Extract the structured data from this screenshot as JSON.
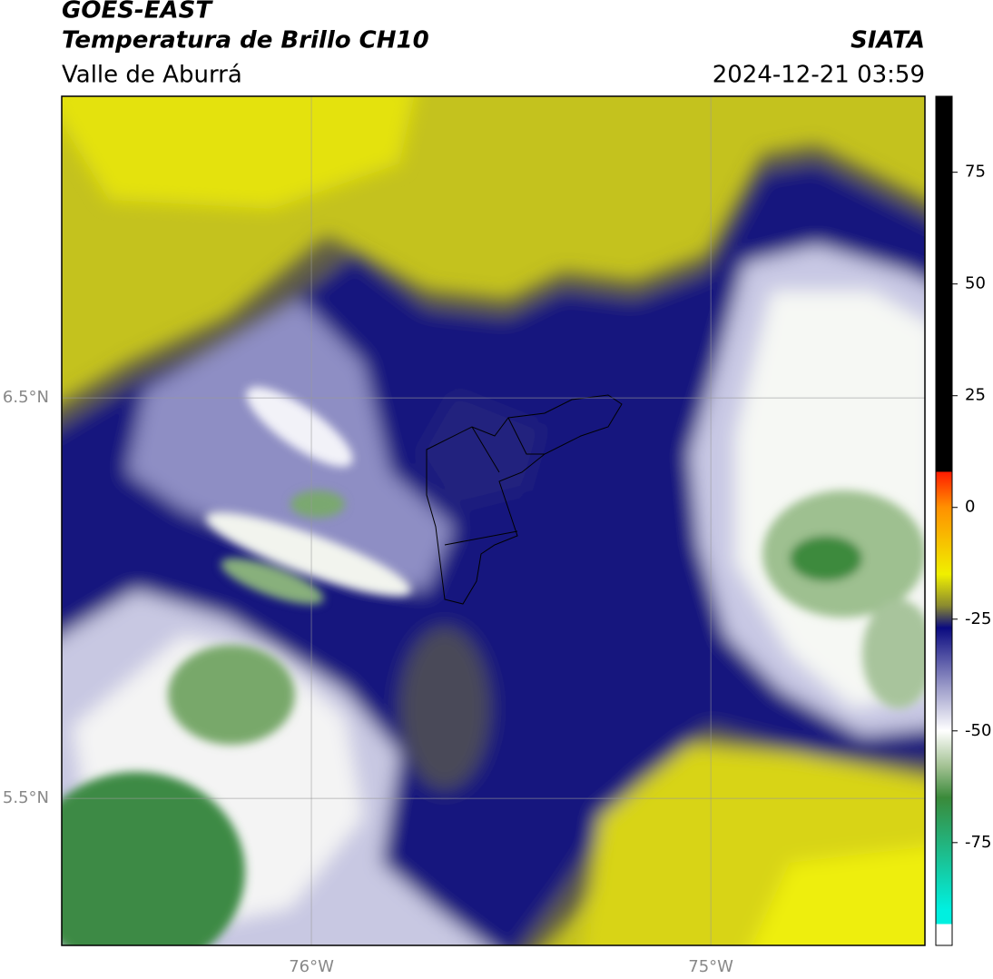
{
  "header": {
    "satellite": "GOES-EAST",
    "product": "Temperatura de Brillo CH10",
    "region": "Valle de Aburrá",
    "source": "SIATA",
    "timestamp": "2024-12-21 03:59"
  },
  "map": {
    "xlim": [
      -76.625,
      -74.464
    ],
    "ylim": [
      5.133,
      7.253
    ],
    "xticks": [
      {
        "value": -76,
        "label": "76°W"
      },
      {
        "value": -75,
        "label": "75°W"
      }
    ],
    "yticks": [
      {
        "value": 6.5,
        "label": "6.5°N"
      },
      {
        "value": 5.5,
        "label": "5.5°N"
      }
    ],
    "grid": true
  },
  "colorbar": {
    "lim": [
      -98,
      92
    ],
    "ticks": [
      75,
      50,
      25,
      0,
      -25,
      -50,
      -75
    ]
  }
}
